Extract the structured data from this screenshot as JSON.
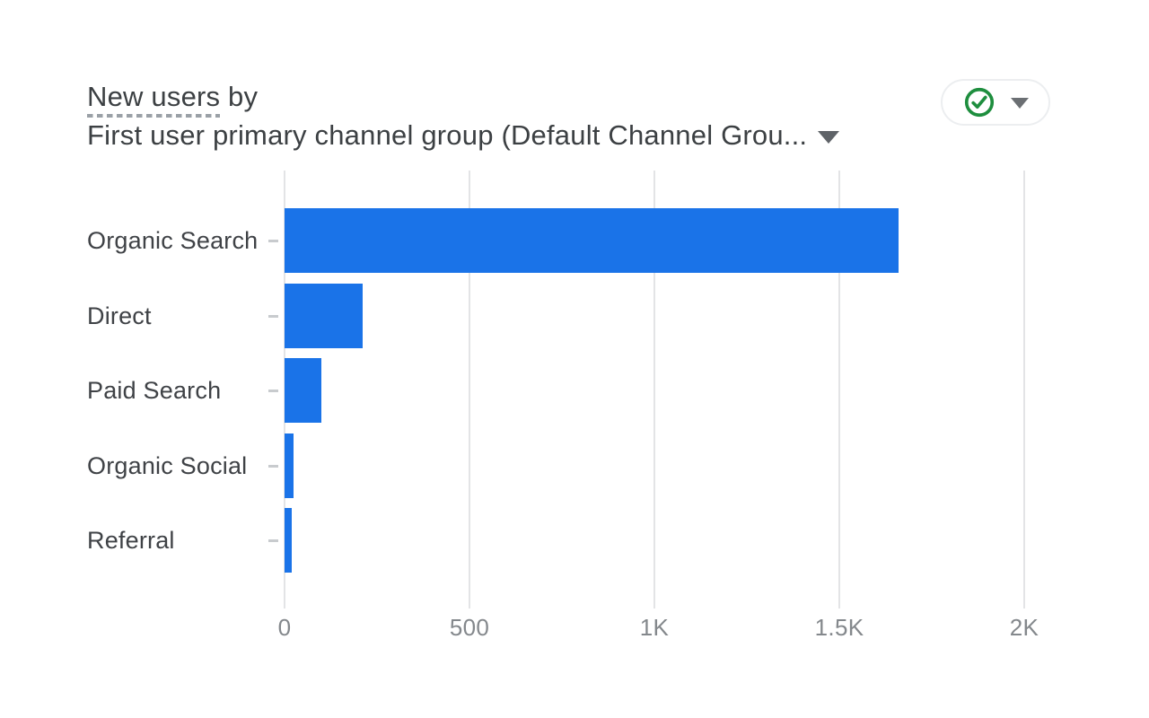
{
  "header": {
    "metric_underlined": "New users",
    "metric_suffix": " by",
    "dimension_label": "First user primary channel group (Default Channel Grou...",
    "dimension_dropdown_icon": "caret-down-icon"
  },
  "quality_control": {
    "icon": "check-circle-icon",
    "icon_color": "#1e8e3e",
    "dropdown_icon": "caret-down-icon"
  },
  "chart_data": {
    "type": "bar",
    "orientation": "horizontal",
    "title": "New users by First user primary channel group (Default Channel Group)",
    "categories": [
      "Organic Search",
      "Direct",
      "Paid Search",
      "Organic Social",
      "Referral"
    ],
    "values": [
      1660,
      210,
      100,
      25,
      20
    ],
    "xlabel": "",
    "ylabel": "",
    "xlim": [
      0,
      2000
    ],
    "x_ticks": [
      {
        "value": 0,
        "label": "0"
      },
      {
        "value": 500,
        "label": "500"
      },
      {
        "value": 1000,
        "label": "1K"
      },
      {
        "value": 1500,
        "label": "1.5K"
      },
      {
        "value": 2000,
        "label": "2K"
      }
    ],
    "grid": true,
    "legend": false,
    "bar_color": "#1a73e8",
    "gridline_color": "#e3e4e6",
    "label_color": "#3f4246",
    "tick_label_color": "#84888c"
  }
}
